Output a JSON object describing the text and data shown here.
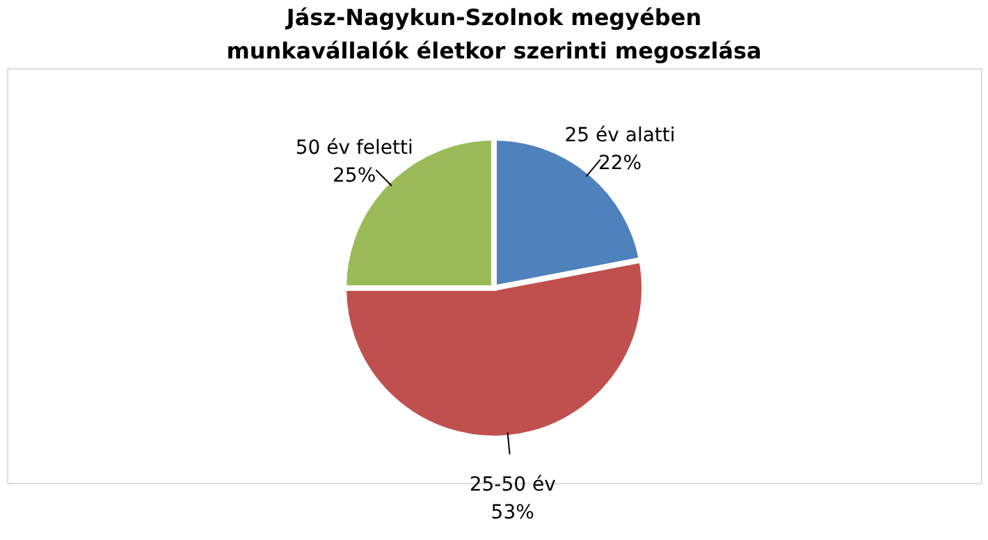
{
  "chart_data": {
    "type": "pie",
    "title": "Jász-Nagykun-Szolnok megyében munkavállalók  életkor szerinti megoszlása",
    "categories": [
      "25 év alatti",
      "25-50 év",
      "50 év feletti"
    ],
    "values": [
      22,
      53,
      25
    ],
    "colors": [
      "#4f81bd",
      "#c0504d",
      "#9bbb59"
    ],
    "value_labels": [
      "22%",
      "53%",
      "25%"
    ]
  }
}
